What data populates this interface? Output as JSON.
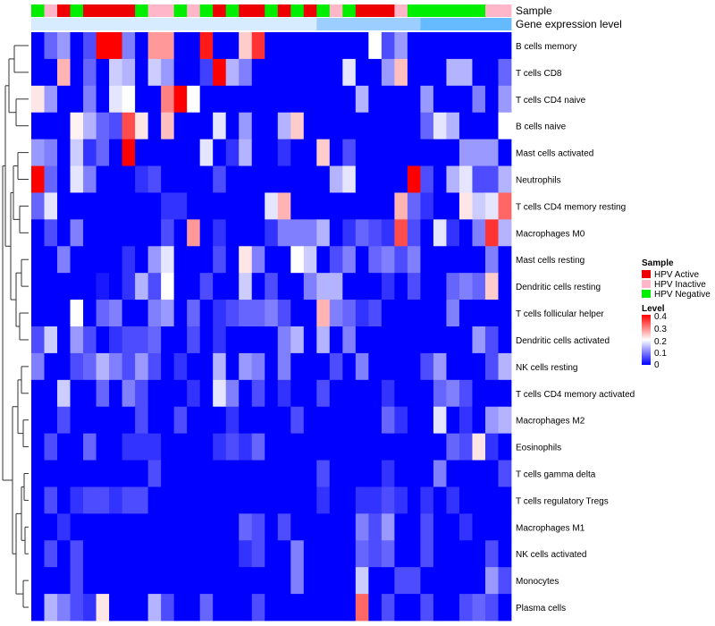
{
  "chart_data": {
    "type": "heatmap",
    "annotation_tracks": [
      {
        "name": "Sample",
        "values": [
          "HPV Negative",
          "HPV Inactive",
          "HPV Active",
          "HPV Negative",
          "HPV Active",
          "HPV Active",
          "HPV Active",
          "HPV Active",
          "HPV Negative",
          "HPV Inactive",
          "HPV Inactive",
          "HPV Negative",
          "HPV Inactive",
          "HPV Negative",
          "HPV Active",
          "HPV Negative",
          "HPV Active",
          "HPV Active",
          "HPV Negative",
          "HPV Active",
          "HPV Negative",
          "HPV Active",
          "HPV Negative",
          "HPV Inactive",
          "HPV Negative",
          "HPV Active",
          "HPV Active",
          "HPV Active",
          "HPV Inactive",
          "HPV Negative",
          "HPV Negative",
          "HPV Negative",
          "HPV Negative",
          "HPV Negative",
          "HPV Negative",
          "HPV Inactive",
          "HPV Inactive"
        ]
      },
      {
        "name": "Gene expression level",
        "values": [
          "low",
          "low",
          "low",
          "low",
          "low",
          "low",
          "low",
          "low",
          "low",
          "low",
          "low",
          "low",
          "low",
          "low",
          "low",
          "low",
          "low",
          "low",
          "low",
          "low",
          "low",
          "low",
          "mid",
          "mid",
          "mid",
          "mid",
          "mid",
          "mid",
          "mid",
          "mid",
          "high",
          "high",
          "high",
          "high",
          "high",
          "high",
          "high"
        ]
      }
    ],
    "rows": [
      "B cells memory",
      "T cells CD8",
      "T cells CD4 naive",
      "B cells naive",
      "Mast cells activated",
      "Neutrophils",
      "T cells CD4 memory resting",
      "Macrophages M0",
      "Mast cells resting",
      "Dendritic cells resting",
      "T cells follicular helper",
      "Dendritic cells activated",
      "NK cells resting",
      "T cells CD4 memory activated",
      "Macrophages M2",
      "Eosinophils",
      "T cells gamma delta",
      "T cells regulatory  Tregs",
      "Macrophages M1",
      "NK cells activated",
      "Monocytes",
      "Plasma cells"
    ],
    "columns_count": 37,
    "values": [
      [
        0.0,
        0.08,
        0.12,
        0.0,
        0.06,
        0.4,
        0.4,
        0.1,
        0.0,
        0.28,
        0.28,
        0.0,
        0.0,
        0.38,
        0.0,
        0.0,
        0.24,
        0.36,
        0.0,
        0.0,
        0.0,
        0.0,
        0.0,
        0.0,
        0.0,
        0.0,
        0.2,
        0.06,
        0.12,
        0.0,
        0.0,
        0.0,
        0.0,
        0.0,
        0.0,
        0.0,
        0.0
      ],
      [
        0.0,
        0.0,
        0.26,
        0.0,
        0.08,
        0.0,
        0.16,
        0.14,
        0.0,
        0.16,
        0.12,
        0.0,
        0.0,
        0.05,
        0.4,
        0.14,
        0.1,
        0.0,
        0.0,
        0.0,
        0.0,
        0.0,
        0.0,
        0.0,
        0.18,
        0.0,
        0.0,
        0.12,
        0.25,
        0.0,
        0.0,
        0.0,
        0.14,
        0.14,
        0.0,
        0.0,
        0.08
      ],
      [
        0.22,
        0.12,
        0.0,
        0.0,
        0.1,
        0.0,
        0.18,
        0.2,
        0.0,
        0.0,
        0.3,
        0.4,
        0.2,
        0.0,
        0.0,
        0.0,
        0.0,
        0.0,
        0.0,
        0.0,
        0.0,
        0.0,
        0.0,
        0.0,
        0.0,
        0.14,
        0.0,
        0.0,
        0.0,
        0.0,
        0.12,
        0.0,
        0.0,
        0.0,
        0.1,
        0.0,
        0.12
      ],
      [
        0.0,
        0.0,
        0.0,
        0.21,
        0.14,
        0.08,
        0.06,
        0.34,
        0.22,
        0.0,
        0.25,
        0.0,
        0.0,
        0.0,
        0.18,
        0.0,
        0.12,
        0.0,
        0.0,
        0.14,
        0.24,
        0.0,
        0.0,
        0.0,
        0.0,
        0.0,
        0.0,
        0.0,
        0.0,
        0.0,
        0.08,
        0.18,
        0.14,
        0.0,
        0.0,
        0.0,
        0.2
      ],
      [
        0.12,
        0.1,
        0.0,
        0.16,
        0.04,
        0.08,
        0.0,
        0.4,
        0.0,
        0.0,
        0.0,
        0.0,
        0.0,
        0.18,
        0.0,
        0.04,
        0.14,
        0.0,
        0.0,
        0.04,
        0.0,
        0.0,
        0.24,
        0.0,
        0.06,
        0.0,
        0.0,
        0.0,
        0.0,
        0.0,
        0.0,
        0.0,
        0.0,
        0.12,
        0.12,
        0.12,
        0.0
      ],
      [
        0.4,
        0.08,
        0.0,
        0.18,
        0.1,
        0.0,
        0.0,
        0.0,
        0.04,
        0.06,
        0.0,
        0.0,
        0.0,
        0.0,
        0.06,
        0.0,
        0.0,
        0.0,
        0.0,
        0.0,
        0.0,
        0.0,
        0.0,
        0.14,
        0.18,
        0.0,
        0.0,
        0.0,
        0.0,
        0.4,
        0.06,
        0.0,
        0.14,
        0.18,
        0.06,
        0.06,
        0.14
      ],
      [
        0.08,
        0.18,
        0.0,
        0.0,
        0.0,
        0.0,
        0.0,
        0.0,
        0.0,
        0.0,
        0.04,
        0.04,
        0.0,
        0.0,
        0.0,
        0.0,
        0.0,
        0.0,
        0.18,
        0.26,
        0.0,
        0.0,
        0.0,
        0.0,
        0.0,
        0.0,
        0.0,
        0.0,
        0.26,
        0.08,
        0.04,
        0.0,
        0.0,
        0.22,
        0.16,
        0.18,
        0.32
      ],
      [
        0.0,
        0.06,
        0.0,
        0.1,
        0.0,
        0.0,
        0.0,
        0.0,
        0.0,
        0.0,
        0.06,
        0.0,
        0.28,
        0.0,
        0.04,
        0.0,
        0.0,
        0.0,
        0.04,
        0.1,
        0.1,
        0.1,
        0.14,
        0.0,
        0.04,
        0.08,
        0.06,
        0.04,
        0.34,
        0.06,
        0.0,
        0.18,
        0.04,
        0.0,
        0.1,
        0.36,
        0.14
      ],
      [
        0.0,
        0.0,
        0.1,
        0.0,
        0.0,
        0.0,
        0.0,
        0.04,
        0.0,
        0.12,
        0.18,
        0.0,
        0.0,
        0.0,
        0.06,
        0.0,
        0.22,
        0.1,
        0.0,
        0.0,
        0.2,
        0.16,
        0.0,
        0.06,
        0.1,
        0.0,
        0.08,
        0.1,
        0.06,
        0.1,
        0.0,
        0.0,
        0.0,
        0.0,
        0.0,
        0.1,
        0.0
      ],
      [
        0.0,
        0.0,
        0.0,
        0.0,
        0.0,
        0.02,
        0.0,
        0.04,
        0.14,
        0.06,
        0.2,
        0.0,
        0.0,
        0.06,
        0.0,
        0.0,
        0.16,
        0.0,
        0.06,
        0.0,
        0.0,
        0.1,
        0.14,
        0.14,
        0.0,
        0.0,
        0.0,
        0.04,
        0.0,
        0.06,
        0.0,
        0.0,
        0.08,
        0.1,
        0.08,
        0.24,
        0.0
      ],
      [
        0.0,
        0.0,
        0.0,
        0.2,
        0.0,
        0.08,
        0.1,
        0.0,
        0.0,
        0.1,
        0.12,
        0.0,
        0.08,
        0.0,
        0.04,
        0.06,
        0.08,
        0.08,
        0.1,
        0.06,
        0.0,
        0.0,
        0.26,
        0.1,
        0.08,
        0.04,
        0.06,
        0.0,
        0.0,
        0.0,
        0.0,
        0.0,
        0.1,
        0.0,
        0.0,
        0.0,
        0.0
      ],
      [
        0.06,
        0.16,
        0.0,
        0.12,
        0.06,
        0.0,
        0.04,
        0.06,
        0.06,
        0.08,
        0.0,
        0.0,
        0.06,
        0.0,
        0.04,
        0.0,
        0.0,
        0.0,
        0.0,
        0.1,
        0.14,
        0.0,
        0.14,
        0.0,
        0.1,
        0.0,
        0.0,
        0.0,
        0.0,
        0.0,
        0.0,
        0.0,
        0.0,
        0.0,
        0.12,
        0.06,
        0.0
      ],
      [
        0.1,
        0.0,
        0.0,
        0.06,
        0.08,
        0.14,
        0.1,
        0.06,
        0.12,
        0.06,
        0.0,
        0.04,
        0.0,
        0.0,
        0.14,
        0.0,
        0.12,
        0.1,
        0.0,
        0.1,
        0.0,
        0.0,
        0.0,
        0.06,
        0.0,
        0.1,
        0.0,
        0.0,
        0.0,
        0.0,
        0.06,
        0.12,
        0.0,
        0.0,
        0.0,
        0.06,
        0.14
      ],
      [
        0.0,
        0.0,
        0.16,
        0.0,
        0.0,
        0.08,
        0.0,
        0.1,
        0.06,
        0.0,
        0.0,
        0.0,
        0.04,
        0.0,
        0.18,
        0.1,
        0.0,
        0.06,
        0.0,
        0.04,
        0.0,
        0.0,
        0.06,
        0.0,
        0.0,
        0.0,
        0.0,
        0.04,
        0.0,
        0.0,
        0.0,
        0.08,
        0.1,
        0.06,
        0.0,
        0.0,
        0.0
      ],
      [
        0.0,
        0.0,
        0.06,
        0.0,
        0.0,
        0.0,
        0.0,
        0.0,
        0.06,
        0.0,
        0.0,
        0.06,
        0.0,
        0.0,
        0.0,
        0.04,
        0.0,
        0.0,
        0.0,
        0.0,
        0.06,
        0.0,
        0.0,
        0.0,
        0.0,
        0.0,
        0.0,
        0.08,
        0.04,
        0.0,
        0.0,
        0.18,
        0.0,
        0.04,
        0.0,
        0.12,
        0.14
      ],
      [
        0.0,
        0.06,
        0.0,
        0.0,
        0.08,
        0.0,
        0.0,
        0.04,
        0.04,
        0.04,
        0.0,
        0.0,
        0.0,
        0.0,
        0.04,
        0.06,
        0.04,
        0.08,
        0.0,
        0.0,
        0.0,
        0.0,
        0.0,
        0.0,
        0.0,
        0.0,
        0.0,
        0.0,
        0.0,
        0.0,
        0.0,
        0.0,
        0.08,
        0.06,
        0.22,
        0.04,
        0.0
      ],
      [
        0.0,
        0.0,
        0.0,
        0.0,
        0.0,
        0.0,
        0.0,
        0.0,
        0.0,
        0.06,
        0.0,
        0.0,
        0.0,
        0.0,
        0.0,
        0.0,
        0.0,
        0.0,
        0.0,
        0.0,
        0.0,
        0.0,
        0.06,
        0.0,
        0.0,
        0.0,
        0.0,
        0.04,
        0.0,
        0.0,
        0.0,
        0.1,
        0.0,
        0.0,
        0.0,
        0.0,
        0.06
      ],
      [
        0.0,
        0.06,
        0.0,
        0.04,
        0.06,
        0.06,
        0.04,
        0.06,
        0.06,
        0.0,
        0.0,
        0.0,
        0.0,
        0.0,
        0.0,
        0.0,
        0.0,
        0.0,
        0.0,
        0.0,
        0.0,
        0.0,
        0.04,
        0.0,
        0.0,
        0.04,
        0.04,
        0.06,
        0.04,
        0.0,
        0.04,
        0.0,
        0.04,
        0.0,
        0.0,
        0.0,
        0.0
      ],
      [
        0.0,
        0.0,
        0.04,
        0.0,
        0.0,
        0.0,
        0.0,
        0.0,
        0.0,
        0.0,
        0.0,
        0.0,
        0.0,
        0.0,
        0.0,
        0.0,
        0.08,
        0.06,
        0.0,
        0.06,
        0.0,
        0.0,
        0.0,
        0.0,
        0.0,
        0.1,
        0.06,
        0.12,
        0.0,
        0.0,
        0.06,
        0.0,
        0.0,
        0.04,
        0.0,
        0.0,
        0.0
      ],
      [
        0.0,
        0.06,
        0.0,
        0.06,
        0.0,
        0.0,
        0.0,
        0.0,
        0.0,
        0.0,
        0.0,
        0.0,
        0.0,
        0.0,
        0.0,
        0.0,
        0.04,
        0.06,
        0.0,
        0.0,
        0.1,
        0.0,
        0.0,
        0.0,
        0.0,
        0.08,
        0.06,
        0.08,
        0.0,
        0.0,
        0.06,
        0.0,
        0.0,
        0.0,
        0.0,
        0.06,
        0.0
      ],
      [
        0.0,
        0.0,
        0.0,
        0.06,
        0.0,
        0.0,
        0.0,
        0.0,
        0.0,
        0.0,
        0.0,
        0.0,
        0.0,
        0.0,
        0.0,
        0.0,
        0.0,
        0.0,
        0.0,
        0.0,
        0.1,
        0.0,
        0.0,
        0.0,
        0.0,
        0.16,
        0.0,
        0.0,
        0.06,
        0.06,
        0.0,
        0.0,
        0.0,
        0.0,
        0.0,
        0.12,
        0.06
      ],
      [
        0.0,
        0.14,
        0.1,
        0.06,
        0.04,
        0.22,
        0.0,
        0.0,
        0.0,
        0.14,
        0.06,
        0.0,
        0.0,
        0.08,
        0.0,
        0.0,
        0.0,
        0.06,
        0.0,
        0.0,
        0.0,
        0.0,
        0.0,
        0.0,
        0.0,
        0.32,
        0.0,
        0.06,
        0.0,
        0.0,
        0.06,
        0.0,
        0.0,
        0.06,
        0.08,
        0.06,
        0.0
      ]
    ],
    "track_titles": {
      "sample": "Sample",
      "gene": "Gene expression level"
    },
    "legend_sample": {
      "title": "Sample",
      "entries": [
        {
          "label": "HPV Active",
          "color": "#ee0000"
        },
        {
          "label": "HPV Inactive",
          "color": "#ffb6c8"
        },
        {
          "label": "HPV Negative",
          "color": "#00ee00"
        }
      ]
    },
    "legend_level": {
      "title": "Level",
      "ticks": [
        "0.4",
        "0.3",
        "0.2",
        "0.1",
        "0"
      ],
      "range": [
        0,
        0.4
      ]
    },
    "colors": {
      "low": "#0000ff",
      "mid": "#ffffff",
      "high": "#ff0000",
      "gene_low": "#d8ecff",
      "gene_mid": "#9ccfff",
      "gene_high": "#66bbff"
    },
    "legend_placement": "right",
    "dendrogram": "rows-left"
  }
}
